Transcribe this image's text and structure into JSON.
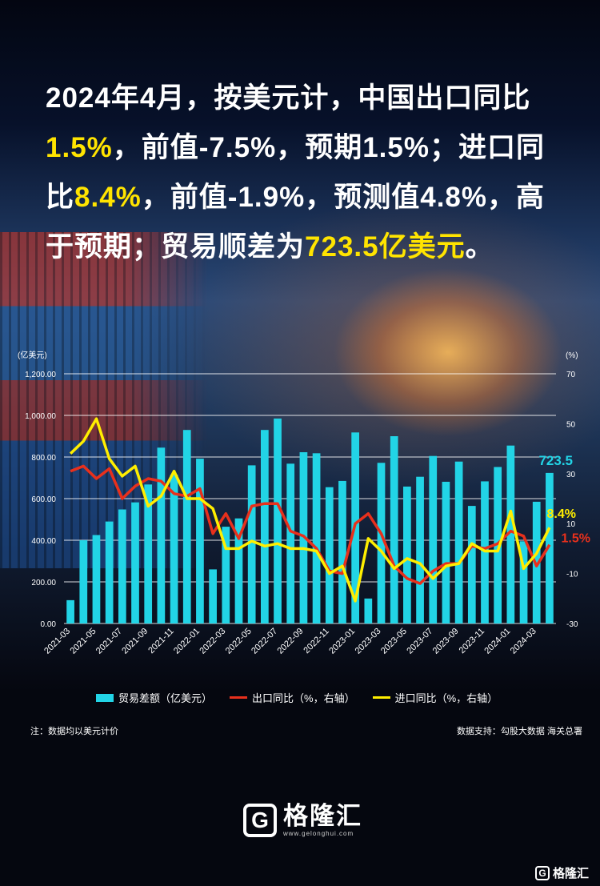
{
  "headline": {
    "p1": "2024年4月，按美元计，中国出口同比",
    "v1": "1.5%",
    "p2": "，前值-7.5%，预期1.5%；进口同比",
    "v2": "8.4%",
    "p3": "，前值-1.9%，预测值4.8%，高于预期；贸易顺差为",
    "v3": "723.5亿美元",
    "p4": "。"
  },
  "chart_data": {
    "type": "bar",
    "left_unit": "(亿美元)",
    "right_unit": "(%)",
    "ylim": [
      0,
      1200
    ],
    "y2lim": [
      -30,
      70
    ],
    "left_ticks": [
      "1,200.00",
      "1,000.00",
      "800.00",
      "600.00",
      "400.00",
      "200.00",
      "0.00"
    ],
    "right_ticks": [
      "70",
      "50",
      "30",
      "10",
      "-10",
      "-30"
    ],
    "x_tick_labels": [
      "2021-03",
      "2021-05",
      "2021-07",
      "2021-09",
      "2021-11",
      "2022-01",
      "2022-03",
      "2022-05",
      "2022-07",
      "2022-09",
      "2022-11",
      "2023-01",
      "2023-03",
      "2023-05",
      "2023-07",
      "2023-09",
      "2023-11",
      "2024-01",
      "2024-03"
    ],
    "categories": [
      "2021-03",
      "2021-04",
      "2021-05",
      "2021-06",
      "2021-07",
      "2021-08",
      "2021-09",
      "2021-10",
      "2021-11",
      "2021-12",
      "2022-01",
      "2022-02",
      "2022-03",
      "2022-04",
      "2022-05",
      "2022-06",
      "2022-07",
      "2022-08",
      "2022-09",
      "2022-10",
      "2022-11",
      "2022-12",
      "2023-01",
      "2023-02",
      "2023-03",
      "2023-04",
      "2023-05",
      "2023-06",
      "2023-07",
      "2023-08",
      "2023-09",
      "2023-10",
      "2023-11",
      "2023-12",
      "2024-01",
      "2024-02",
      "2024-03",
      "2024-04"
    ],
    "series": [
      {
        "name": "贸易差额（亿美元）",
        "type": "bar",
        "axis": "left",
        "color": "#22d4e6",
        "values": [
          112,
          400,
          425,
          490,
          548,
          582,
          668,
          845,
          715,
          930,
          792,
          260,
          465,
          505,
          760,
          930,
          985,
          768,
          823,
          818,
          655,
          685,
          918,
          120,
          772,
          900,
          658,
          705,
          805,
          681,
          778,
          565,
          683,
          752,
          855,
          395,
          585,
          723.5
        ]
      },
      {
        "name": "出口同比（%，右轴）",
        "type": "line",
        "axis": "right",
        "color": "#e8301c",
        "values": [
          31,
          33,
          28,
          32,
          20,
          25,
          28,
          27,
          22,
          21,
          24,
          6,
          14,
          4,
          17,
          18,
          18,
          7,
          5,
          0,
          -9,
          -10,
          10,
          14,
          6,
          -7,
          -12,
          -14,
          -9,
          -6,
          -6,
          1,
          0,
          2,
          7,
          5,
          -7,
          1.5
        ]
      },
      {
        "name": "进口同比（%，右轴）",
        "type": "line",
        "axis": "right",
        "color": "#ffee00",
        "values": [
          38,
          43,
          52,
          36,
          29,
          33,
          17,
          21,
          31,
          20,
          20,
          16,
          0,
          0,
          3,
          1,
          2,
          0,
          0,
          -1,
          -10,
          -7,
          -21,
          4,
          -1,
          -8,
          -4,
          -6,
          -12,
          -7,
          -6,
          2,
          -1,
          -1,
          15,
          -8,
          -2,
          8.4
        ]
      }
    ],
    "annotations": [
      {
        "text": "723.5",
        "color": "#22d4e6"
      },
      {
        "text": "8.4%",
        "color": "#ffee00"
      },
      {
        "text": "1.5%",
        "color": "#e8301c"
      }
    ],
    "legend_position": "bottom"
  },
  "footer": {
    "note": "注：数据均以美元计价",
    "source": "数据支持：勾股大数据 海关总署"
  },
  "brand": {
    "mark": "G",
    "name": "格隆汇",
    "url": "www.gelonghui.com"
  }
}
